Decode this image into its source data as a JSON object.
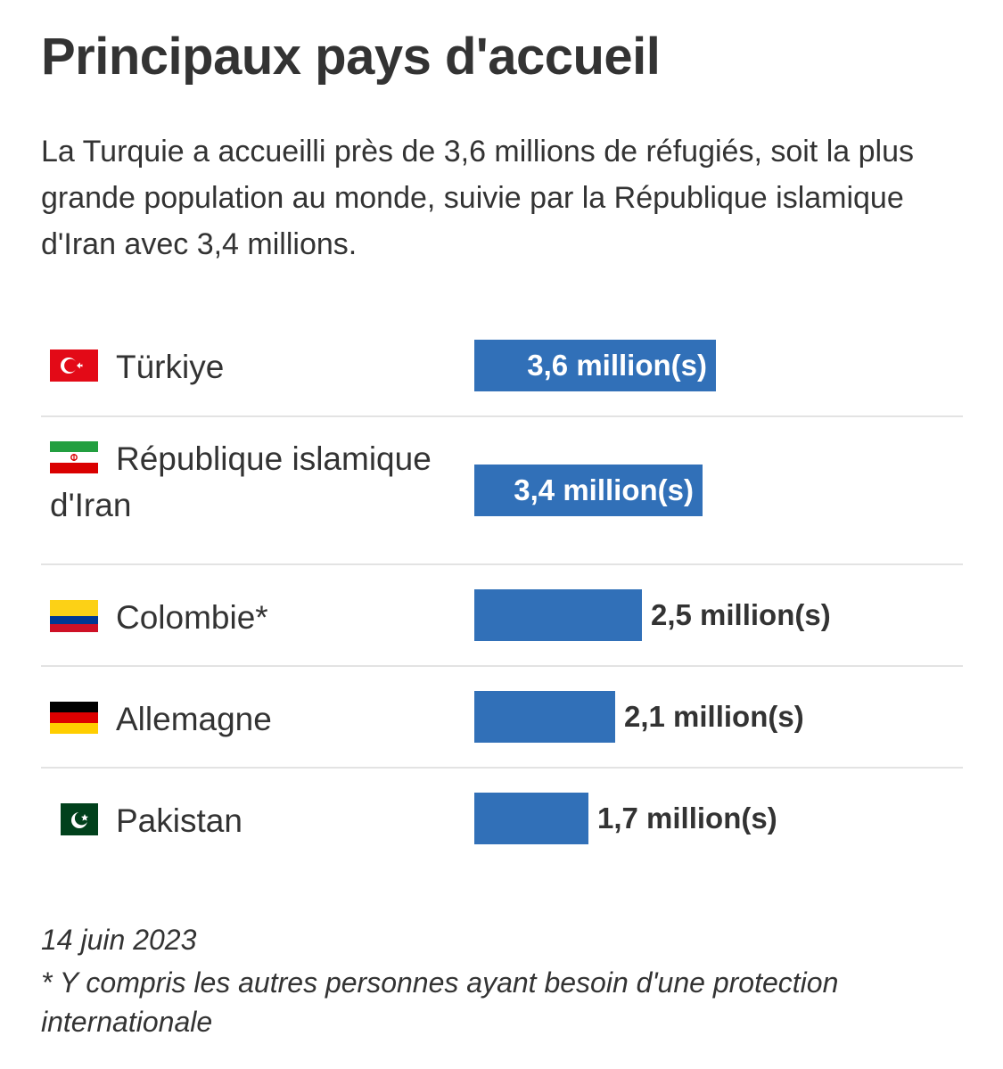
{
  "title": "Principaux pays d'accueil",
  "subtitle": "La Turquie a accueilli près de 3,6 millions de réfugiés, soit la plus grande population au monde, suivie par la République islamique d'Iran avec 3,4 millions.",
  "footer": {
    "date": "14 juin 2023",
    "note": "* Y compris les autres personnes ayant besoin d'une protection internationale"
  },
  "colors": {
    "bar": "#3170b8",
    "text": "#333333",
    "divider": "#e3e3e3"
  },
  "chart_data": {
    "type": "bar",
    "orientation": "horizontal",
    "unit": "million(s)",
    "categories": [
      "Türkiye",
      "République islamique d'Iran",
      "Colombie*",
      "Allemagne",
      "Pakistan"
    ],
    "values": [
      3.6,
      3.4,
      2.5,
      2.1,
      1.7
    ],
    "value_labels": [
      "3,6 million(s)",
      "3,4 million(s)",
      "2,5 million(s)",
      "2,1 million(s)",
      "1,7 million(s)"
    ],
    "flag_icons": [
      "turkey-flag-icon",
      "iran-flag-icon",
      "colombia-flag-icon",
      "germany-flag-icon",
      "pakistan-flag-icon"
    ],
    "label_position": [
      "inside",
      "inside",
      "outside",
      "outside",
      "outside"
    ]
  }
}
